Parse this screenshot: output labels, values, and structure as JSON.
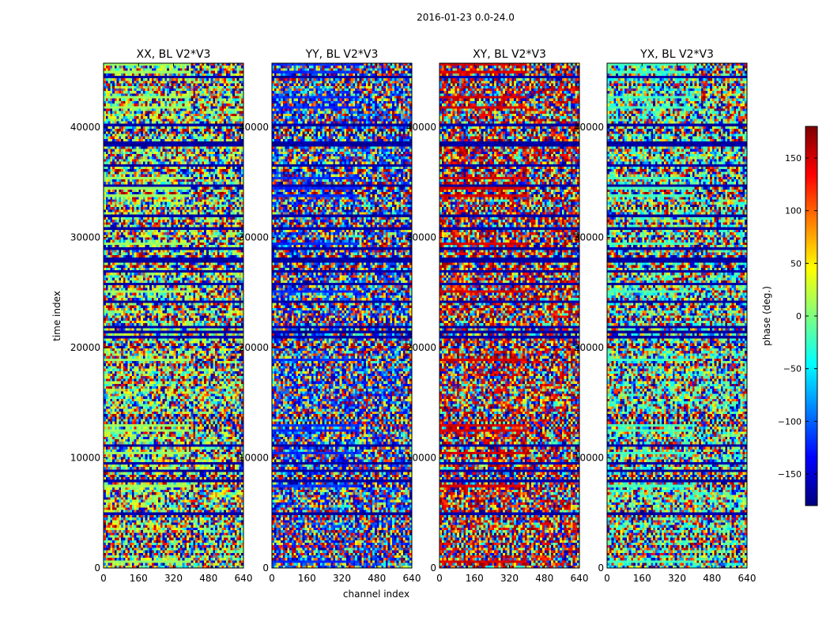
{
  "chart_data": {
    "type": "heatmap",
    "suptitle": "2016-01-23 0.0-24.0",
    "xlabel": "channel index",
    "ylabel": "time index",
    "xlim": [
      0,
      640
    ],
    "ylim": [
      0,
      45800
    ],
    "xticks": [
      0,
      160,
      320,
      480,
      640
    ],
    "yticks": [
      0,
      10000,
      20000,
      30000,
      40000
    ],
    "panels": [
      {
        "title": "XX, BL V2*V3",
        "bias": 10,
        "bias_strength": 0.9
      },
      {
        "title": "YY, BL V2*V3",
        "bias": -120,
        "bias_strength": 0.85
      },
      {
        "title": "XY, BL V2*V3",
        "bias": 150,
        "bias_strength": 0.8
      },
      {
        "title": "YX, BL V2*V3",
        "bias": -20,
        "bias_strength": 0.7
      }
    ],
    "colorbar": {
      "label": "phase (deg.)",
      "range": [
        -180,
        180
      ],
      "ticks": [
        -150,
        -100,
        -50,
        0,
        50,
        100,
        150
      ],
      "tick_labels": [
        "−150",
        "−100",
        "−50",
        "0",
        "50",
        "100",
        "150"
      ],
      "colormap": "jet"
    }
  }
}
